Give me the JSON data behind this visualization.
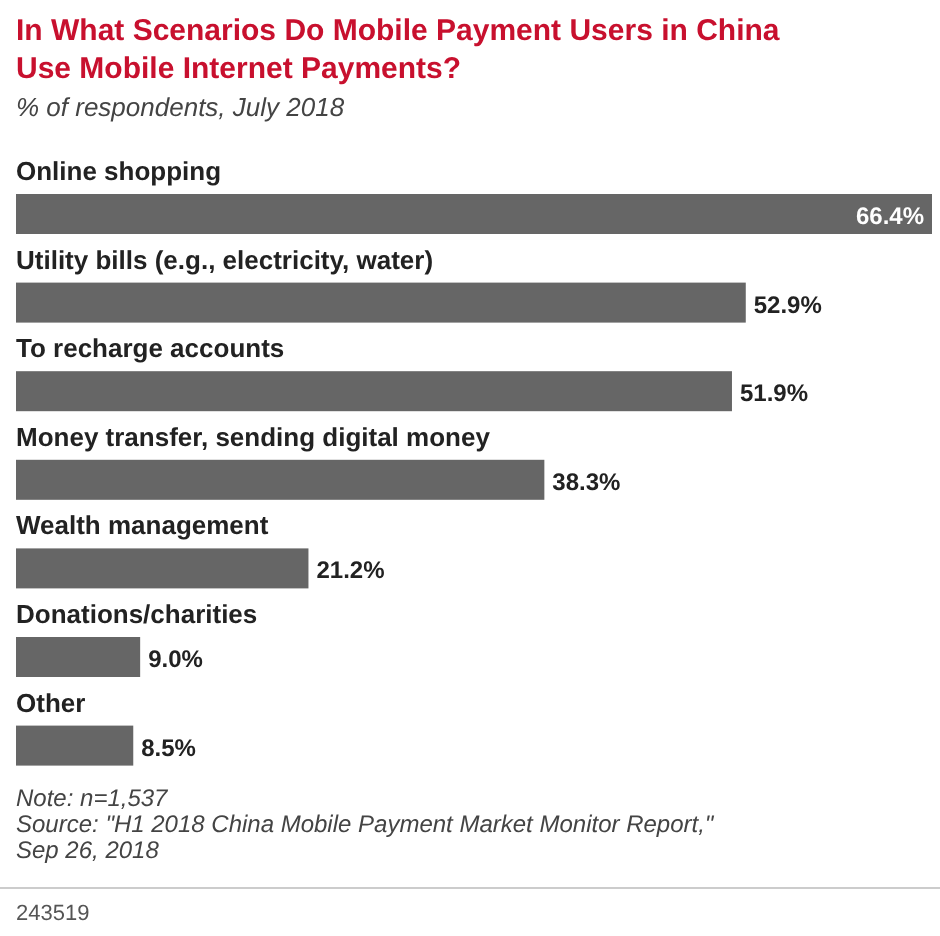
{
  "chart_data": {
    "type": "bar",
    "orientation": "horizontal",
    "title": "In What Scenarios Do Mobile Payment Users in China Use Mobile Internet Payments?",
    "subtitle": "% of respondents, July 2018",
    "categories": [
      "Online shopping",
      "Utility bills (e.g., electricity, water)",
      "To recharge accounts",
      "Money transfer, sending digital money",
      "Wealth management",
      "Donations/charities",
      "Other"
    ],
    "values": [
      66.4,
      52.9,
      51.9,
      38.3,
      21.2,
      9.0,
      8.5
    ],
    "value_labels": [
      "66.4%",
      "52.9%",
      "51.9%",
      "38.3%",
      "21.2%",
      "9.0%",
      "8.5%"
    ],
    "color": "#666666",
    "grid": false,
    "annotations": [
      "Note: n=1,537",
      "Source: \"H1 2018 China Mobile Payment Market Monitor Report,\" Sep 26, 2018",
      "243519"
    ]
  }
}
